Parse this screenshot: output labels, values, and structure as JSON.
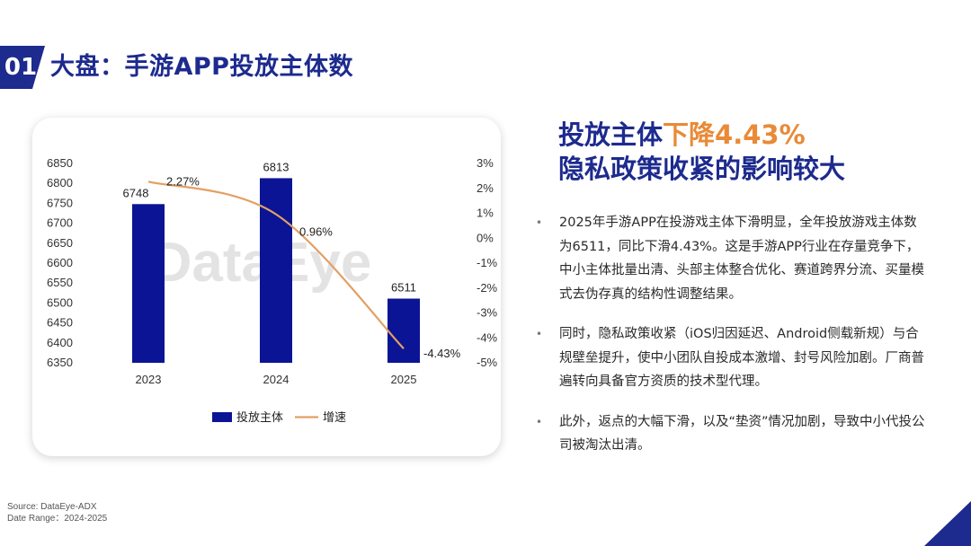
{
  "header": {
    "section_number": "01",
    "title": "大盘：手游APP投放主体数"
  },
  "chart_data": {
    "type": "bar",
    "categories": [
      "2023",
      "2024",
      "2025"
    ],
    "series": [
      {
        "name": "投放主体",
        "kind": "bar",
        "axis": "left",
        "values": [
          6748,
          6813,
          6511
        ],
        "color": "#0a1494"
      },
      {
        "name": "增速",
        "kind": "line",
        "axis": "right",
        "values": [
          2.27,
          0.96,
          -4.43
        ],
        "color": "#e3a063"
      }
    ],
    "bar_labels": [
      "6748",
      "6813",
      "6511"
    ],
    "line_labels": [
      "2.27%",
      "0.96%",
      "-4.43%"
    ],
    "y_left": {
      "min": 6350,
      "max": 6850,
      "ticks": [
        "6850",
        "6800",
        "6750",
        "6700",
        "6650",
        "6600",
        "6550",
        "6500",
        "6450",
        "6400",
        "6350"
      ]
    },
    "y_right": {
      "min": -5,
      "max": 3,
      "ticks": [
        "3%",
        "2%",
        "1%",
        "0%",
        "-1%",
        "-2%",
        "-3%",
        "-4%",
        "-5%"
      ]
    },
    "legend": {
      "position": "bottom"
    },
    "watermark": "DataEye"
  },
  "headline": {
    "line1_prefix": "投放主体",
    "line1_accent": "下降4.43%",
    "line2": "隐私政策收紧的影响较大"
  },
  "colors": {
    "brand": "#1d2a8e",
    "accent": "#e98a37"
  },
  "bullets": [
    {
      "marker": "•",
      "text": "2025年手游APP在投游戏主体下滑明显，全年投放游戏主体数为6511，同比下滑4.43%。这是手游APP行业在存量竞争下，中小主体批量出清、头部主体整合优化、赛道跨界分流、买量模式去伪存真的结构性调整结果。"
    },
    {
      "marker": "•",
      "text": "同时，隐私政策收紧（iOS归因延迟、Android侧载新规）与合规壁垒提升，使中小团队自投成本激增、封号风险加剧。厂商普遍转向具备官方资质的技术型代理。"
    },
    {
      "marker": "•",
      "text": "此外，返点的大幅下滑，以及“垫资”情况加剧，导致中小代投公司被淘汰出清。"
    }
  ],
  "footer": {
    "source": "Source: DataEye-ADX",
    "date_range": "Date Range：2024-2025"
  }
}
